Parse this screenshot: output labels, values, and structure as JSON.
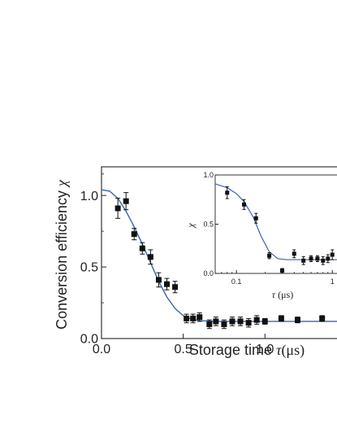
{
  "chart_data": [
    {
      "id": "main",
      "type": "scatter",
      "xlabel": "Storage time",
      "xlabel_symbol": "τ",
      "xlabel_unit": "(μs)",
      "ylabel": "Conversion efficiency",
      "ylabel_symbol": "χ",
      "xlim": [
        0.0,
        1.6
      ],
      "ylim": [
        0.0,
        1.2
      ],
      "xticks": [
        0.0,
        0.5,
        1.0,
        1.5
      ],
      "xtick_labels": [
        "0.0",
        "0.5",
        "1.0",
        "1.5"
      ],
      "yticks": [
        0.0,
        0.5,
        1.0
      ],
      "ytick_labels": [
        "0.0",
        "0.5",
        "1.0"
      ],
      "marker_color": "#111111",
      "fit_color": "#3a64b0",
      "grid": false,
      "series": [
        {
          "kind": "points",
          "x": [
            0.1,
            0.15,
            0.2,
            0.25,
            0.3,
            0.35,
            0.4,
            0.45,
            0.52,
            0.56,
            0.6,
            0.66,
            0.7,
            0.75,
            0.8,
            0.85,
            0.9,
            0.95,
            1.0,
            1.1,
            1.2,
            1.35,
            1.5
          ],
          "y": [
            0.91,
            0.96,
            0.73,
            0.63,
            0.57,
            0.41,
            0.38,
            0.36,
            0.14,
            0.14,
            0.15,
            0.1,
            0.12,
            0.1,
            0.12,
            0.12,
            0.11,
            0.13,
            0.12,
            0.14,
            0.13,
            0.14,
            0.14
          ],
          "err": [
            0.07,
            0.06,
            0.04,
            0.04,
            0.05,
            0.05,
            0.04,
            0.04,
            0.03,
            0.03,
            0.03,
            0.03,
            0.03,
            0.03,
            0.03,
            0.03,
            0.03,
            0.03,
            0.02,
            0.02,
            0.02,
            0.02,
            0.02
          ]
        },
        {
          "kind": "fit",
          "x": [
            0.0,
            0.05,
            0.1,
            0.15,
            0.2,
            0.25,
            0.3,
            0.35,
            0.4,
            0.45,
            0.5,
            0.55,
            0.6,
            0.7,
            0.8,
            1.0,
            1.2,
            1.4,
            1.6
          ],
          "y": [
            1.04,
            1.03,
            0.98,
            0.89,
            0.78,
            0.66,
            0.53,
            0.4,
            0.29,
            0.21,
            0.16,
            0.135,
            0.125,
            0.12,
            0.12,
            0.12,
            0.12,
            0.12,
            0.12
          ]
        }
      ]
    },
    {
      "id": "inset",
      "type": "scatter",
      "xscale": "log",
      "xlabel_symbol": "τ",
      "xlabel_unit": "(μs)",
      "ylabel_symbol": "χ",
      "xlim": [
        0.06,
        1.5
      ],
      "ylim": [
        0.0,
        1.0
      ],
      "xticks": [
        0.1,
        1
      ],
      "xtick_labels": [
        "0.1",
        "1"
      ],
      "yticks": [
        0.0,
        0.5,
        1.0
      ],
      "ytick_labels": [
        "0.0",
        "0.5",
        "1.0"
      ],
      "series": [
        {
          "kind": "points",
          "x": [
            0.08,
            0.12,
            0.16,
            0.22,
            0.3,
            0.4,
            0.5,
            0.6,
            0.7,
            0.8,
            0.9,
            1.0,
            1.2
          ],
          "y": [
            0.82,
            0.7,
            0.56,
            0.18,
            0.03,
            0.2,
            0.13,
            0.15,
            0.15,
            0.13,
            0.15,
            0.19,
            0.21
          ],
          "err": [
            0.06,
            0.05,
            0.05,
            0.03,
            0.02,
            0.04,
            0.04,
            0.03,
            0.03,
            0.04,
            0.04,
            0.05,
            0.05
          ]
        },
        {
          "kind": "fit",
          "x": [
            0.06,
            0.08,
            0.1,
            0.12,
            0.15,
            0.18,
            0.22,
            0.27,
            0.33,
            0.45,
            0.6,
            0.8,
            1.0,
            1.5
          ],
          "y": [
            0.91,
            0.87,
            0.81,
            0.73,
            0.57,
            0.38,
            0.22,
            0.15,
            0.14,
            0.14,
            0.14,
            0.14,
            0.14,
            0.14
          ]
        }
      ]
    }
  ]
}
